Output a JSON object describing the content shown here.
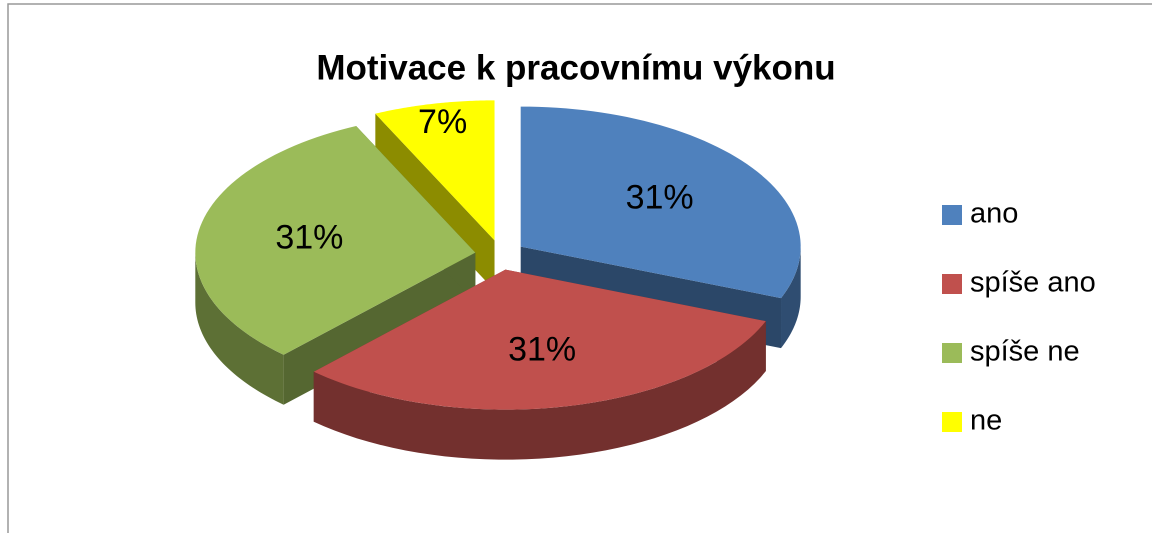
{
  "chart_data": {
    "type": "pie",
    "title": "Motivace k pracovnímu výkonu",
    "categories": [
      "ano",
      "spíše ano",
      "spíše ne",
      "ne"
    ],
    "values": [
      31,
      31,
      31,
      7
    ],
    "value_labels": [
      "31%",
      "31%",
      "31%",
      "7%"
    ],
    "colors": [
      "#4f81bd",
      "#c0504d",
      "#9bbb59",
      "#ffff00"
    ],
    "legend": "right"
  }
}
